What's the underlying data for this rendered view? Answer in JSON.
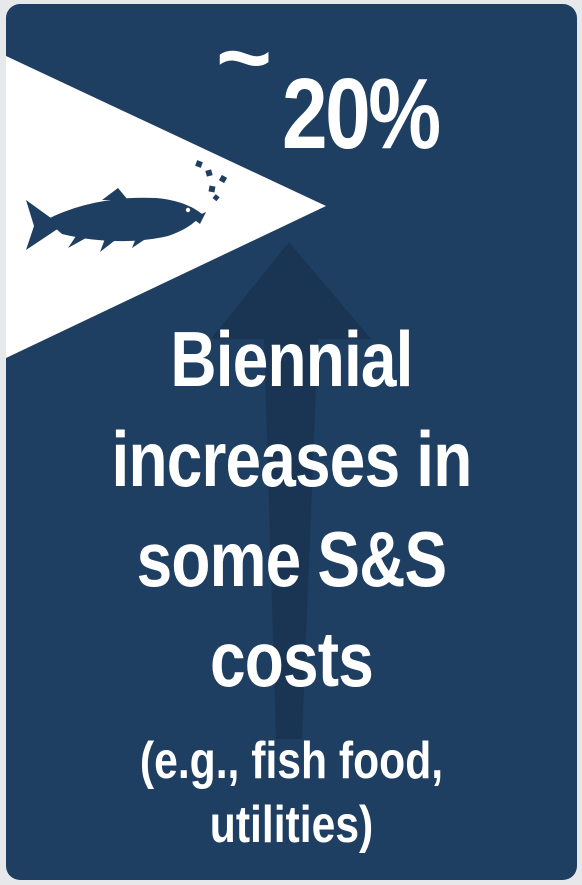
{
  "stat": {
    "tilde": "~",
    "value": "20%"
  },
  "headline": {
    "line1": "Biennial",
    "line2": "increases in",
    "line3": "some S&S",
    "line4": "costs"
  },
  "subtext": {
    "line1": "(e.g., fish food,",
    "line2": "utilities)"
  },
  "icons": {
    "fish": "salmon-icon",
    "food": "fish-food-pellets-icon",
    "arrow": "up-arrow-icon"
  },
  "colors": {
    "card_background": "#1f3f62",
    "arrow": "#1a3553",
    "triangle": "#ffffff",
    "text": "#ffffff",
    "fish": "#1f3f62"
  }
}
